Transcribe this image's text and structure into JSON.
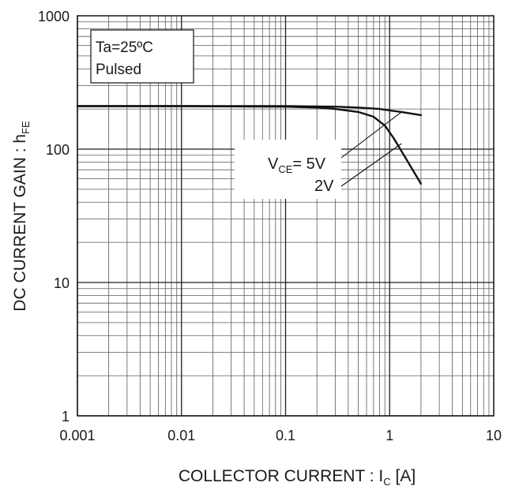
{
  "chart_data": {
    "type": "line",
    "x_scale": "log",
    "y_scale": "log",
    "xlim": [
      0.001,
      10
    ],
    "ylim": [
      1,
      1000
    ],
    "grid": true,
    "x_ticks": [
      "0.001",
      "0.01",
      "0.1",
      "1",
      "10"
    ],
    "y_ticks": [
      "1",
      "10",
      "100",
      "1000"
    ],
    "xlabel": {
      "main": "COLLECTOR CURRENT : I",
      "sub": "C",
      "unit": " [A]"
    },
    "ylabel": {
      "main": "DC CURRENT GAIN : h",
      "sub": "FE"
    },
    "conditions": [
      "Ta=25ºC",
      "Pulsed"
    ],
    "series": [
      {
        "name": "VCE=5V",
        "label": {
          "main": "V",
          "sub": "CE",
          "rest": "= 5V"
        },
        "x": [
          0.001,
          0.01,
          0.1,
          0.3,
          0.5,
          0.8,
          1.0,
          1.3,
          2.0
        ],
        "y": [
          210,
          210,
          210,
          208,
          205,
          200,
          195,
          190,
          180
        ]
      },
      {
        "name": "VCE=2V",
        "label": {
          "main": "2V"
        },
        "x": [
          0.001,
          0.01,
          0.1,
          0.2,
          0.3,
          0.5,
          0.7,
          0.9,
          1.1,
          1.5,
          2.0
        ],
        "y": [
          210,
          210,
          208,
          205,
          200,
          190,
          175,
          150,
          120,
          80,
          55
        ]
      }
    ]
  }
}
